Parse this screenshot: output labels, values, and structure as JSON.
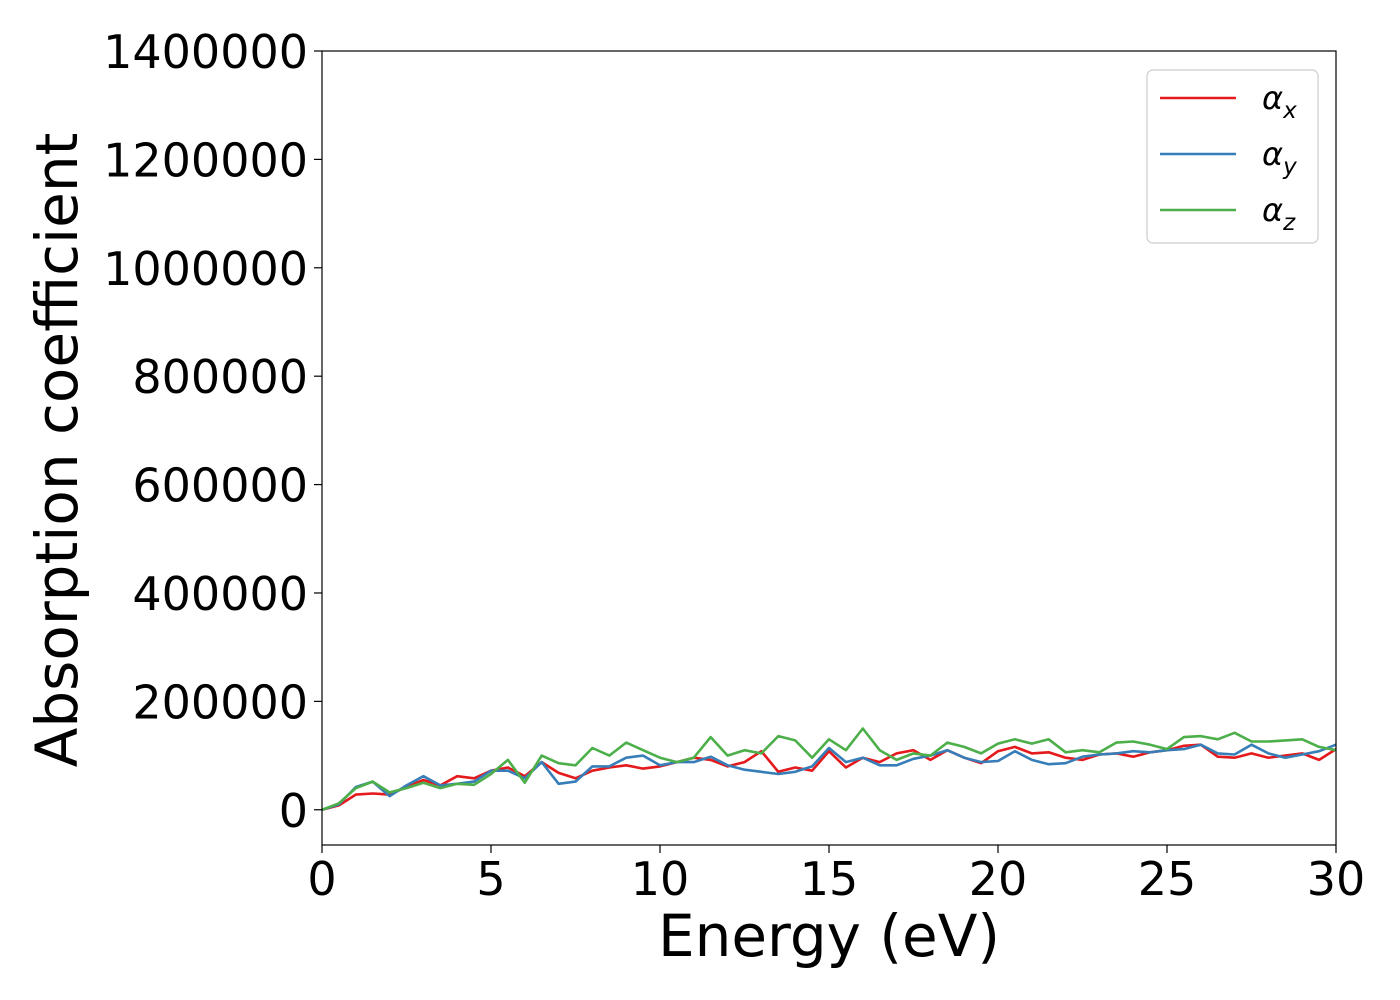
{
  "chart_data": {
    "type": "line",
    "title": "",
    "xlabel": "Energy (eV)",
    "ylabel": "Absorption coefficient",
    "xlim": [
      0,
      30
    ],
    "ylim": [
      -65000,
      1400000
    ],
    "xticks": [
      0,
      5,
      10,
      15,
      20,
      25,
      30
    ],
    "yticks": [
      0,
      200000,
      400000,
      600000,
      800000,
      1000000,
      1200000,
      1400000
    ],
    "grid": false,
    "legend_position": "top-right",
    "x": [
      0.0,
      0.5,
      1.0,
      1.5,
      2.0,
      2.5,
      3.0,
      3.5,
      4.0,
      4.5,
      5.0,
      5.5,
      6.0,
      6.5,
      7.0,
      7.5,
      8.0,
      8.5,
      9.0,
      9.5,
      10.0,
      10.5,
      11.0,
      11.5,
      12.0,
      12.5,
      13.0,
      13.5,
      14.0,
      14.5,
      15.0,
      15.5,
      16.0,
      16.5,
      17.0,
      17.5,
      18.0,
      18.5,
      19.0,
      19.5,
      20.0,
      20.5,
      21.0,
      21.5,
      22.0,
      22.5,
      23.0,
      23.5,
      24.0,
      24.5,
      25.0,
      25.5,
      26.0,
      26.5,
      27.0,
      27.5,
      28.0,
      28.5,
      29.0,
      29.5,
      30.0
    ],
    "series": [
      {
        "name": "α_x",
        "color": "#e41a1c",
        "values": [
          0,
          8000,
          28000,
          30000,
          28000,
          42000,
          55000,
          45000,
          62000,
          58000,
          72000,
          78000,
          62000,
          88000,
          68000,
          58000,
          72000,
          78000,
          82000,
          76000,
          80000,
          88000,
          96000,
          92000,
          80000,
          88000,
          108000,
          70000,
          78000,
          72000,
          108000,
          78000,
          96000,
          88000,
          104000,
          110000,
          92000,
          110000,
          96000,
          86000,
          108000,
          116000,
          104000,
          106000,
          96000,
          92000,
          102000,
          104000,
          98000,
          106000,
          110000,
          118000,
          120000,
          98000,
          96000,
          104000,
          96000,
          100000,
          104000,
          92000,
          112000
        ]
      },
      {
        "name": "α_y",
        "color": "#377eb8",
        "values": [
          0,
          10000,
          42000,
          52000,
          25000,
          45000,
          62000,
          45000,
          48000,
          52000,
          72000,
          72000,
          58000,
          88000,
          48000,
          52000,
          80000,
          80000,
          96000,
          100000,
          82000,
          88000,
          88000,
          98000,
          82000,
          74000,
          70000,
          66000,
          70000,
          80000,
          114000,
          88000,
          96000,
          82000,
          82000,
          94000,
          100000,
          110000,
          96000,
          88000,
          90000,
          108000,
          92000,
          84000,
          86000,
          98000,
          102000,
          104000,
          108000,
          106000,
          110000,
          112000,
          120000,
          104000,
          102000,
          120000,
          104000,
          96000,
          102000,
          108000,
          120000
        ]
      },
      {
        "name": "α_z",
        "color": "#4daf4a",
        "values": [
          0,
          12000,
          40000,
          52000,
          32000,
          40000,
          50000,
          40000,
          48000,
          46000,
          66000,
          92000,
          50000,
          100000,
          86000,
          82000,
          114000,
          100000,
          124000,
          110000,
          96000,
          88000,
          96000,
          134000,
          100000,
          110000,
          104000,
          136000,
          128000,
          96000,
          130000,
          110000,
          150000,
          110000,
          92000,
          104000,
          100000,
          124000,
          116000,
          104000,
          122000,
          130000,
          122000,
          130000,
          106000,
          110000,
          106000,
          124000,
          126000,
          120000,
          112000,
          134000,
          136000,
          130000,
          142000,
          126000,
          126000,
          128000,
          130000,
          116000,
          110000
        ]
      }
    ],
    "legend": [
      {
        "base": "α",
        "sub": "x",
        "color": "#e41a1c"
      },
      {
        "base": "α",
        "sub": "y",
        "color": "#377eb8"
      },
      {
        "base": "α",
        "sub": "z",
        "color": "#4daf4a"
      }
    ]
  }
}
